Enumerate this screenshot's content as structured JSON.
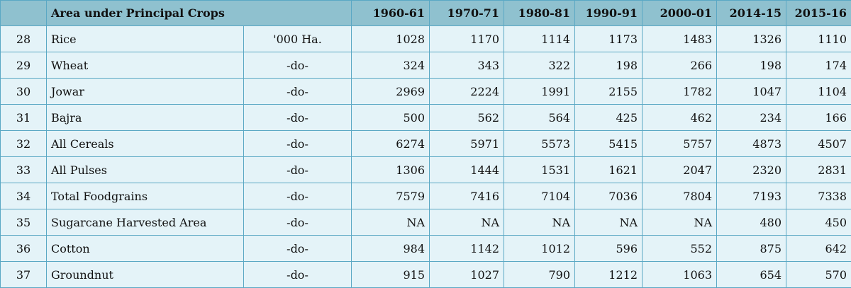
{
  "table": {
    "header": {
      "title": "Area under Principal Crops",
      "years": [
        "1960-61",
        "1970-71",
        "1980-81",
        "1990-91",
        "2000-01",
        "2014-15",
        "2015-16"
      ]
    },
    "rows": [
      [
        28,
        "Rice",
        "'000 Ha.",
        1028,
        1170,
        1114,
        1173,
        1483,
        1326,
        1110
      ],
      [
        29,
        "Wheat",
        "-do-",
        324,
        343,
        322,
        198,
        266,
        198,
        174
      ],
      [
        30,
        "Jowar",
        "-do-",
        2969,
        2224,
        1991,
        2155,
        1782,
        1047,
        1104
      ],
      [
        31,
        "Bajra",
        "-do-",
        500,
        562,
        564,
        425,
        462,
        234,
        166
      ],
      [
        32,
        "All Cereals",
        "-do-",
        6274,
        5971,
        5573,
        5415,
        5757,
        4873,
        4507
      ],
      [
        33,
        "All Pulses",
        "-do-",
        1306,
        1444,
        1531,
        1621,
        2047,
        2320,
        2831
      ],
      [
        34,
        "Total Foodgrains",
        "-do-",
        7579,
        7416,
        7104,
        7036,
        7804,
        7193,
        7338
      ],
      [
        35,
        "Sugarcane Harvested Area",
        "-do-",
        "NA",
        "NA",
        "NA",
        "NA",
        "NA",
        480,
        450
      ],
      [
        36,
        "Cotton",
        "-do-",
        984,
        1142,
        1012,
        596,
        552,
        875,
        642
      ],
      [
        37,
        "Groundnut",
        "-do-",
        915,
        1027,
        790,
        1212,
        1063,
        654,
        570
      ]
    ]
  }
}
